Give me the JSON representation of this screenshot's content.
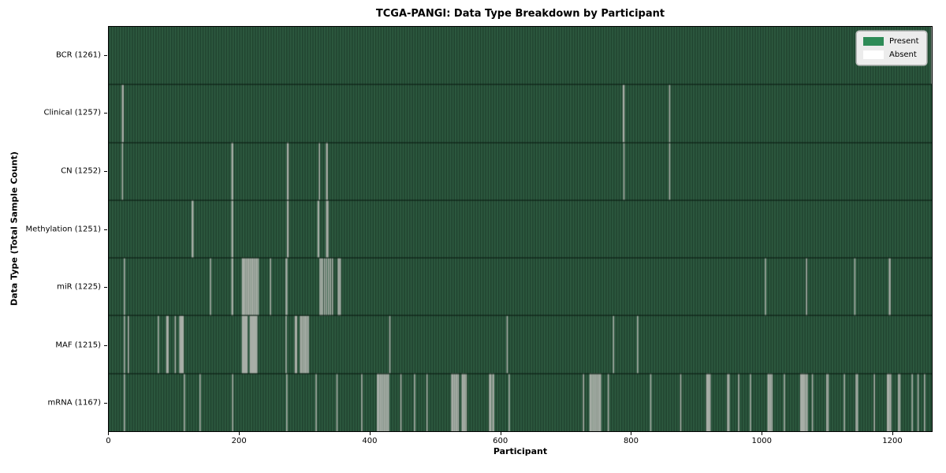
{
  "chart_data": {
    "type": "heatmap",
    "title": "TCGA-PANGI: Data Type Breakdown by Participant",
    "xlabel": "Participant",
    "ylabel": "Data Type (Total Sample Count)",
    "n_participants": 1262,
    "x_ticks": [
      0,
      200,
      400,
      600,
      800,
      1000,
      1200
    ],
    "legend_position": "upper right",
    "grid": false,
    "rows": [
      {
        "label": "BCR (1261)",
        "name": "BCR",
        "count": 1261,
        "absent": [
          1261
        ]
      },
      {
        "label": "Clinical (1257)",
        "name": "Clinical",
        "count": 1257,
        "absent": [
          20,
          21,
          788,
          789,
          859
        ]
      },
      {
        "label": "CN (1252)",
        "name": "CN",
        "count": 1252,
        "absent": [
          20,
          188,
          189,
          273,
          274,
          322,
          333,
          334,
          789,
          859
        ]
      },
      {
        "label": "Methylation (1251)",
        "name": "Methylation",
        "count": 1251,
        "absent": [
          127,
          128,
          188,
          189,
          273,
          274,
          320,
          321,
          333,
          334,
          335
        ]
      },
      {
        "label": "miR (1225)",
        "name": "miR",
        "count": 1225,
        "absent": [
          23,
          155,
          188,
          189,
          204,
          205,
          206,
          208,
          210,
          212,
          214,
          216,
          218,
          220,
          222,
          224,
          226,
          228,
          247,
          271,
          272,
          323,
          325,
          327,
          330,
          333,
          336,
          339,
          342,
          351,
          352,
          354,
          1006,
          1069,
          1143,
          1196,
          1197
        ]
      },
      {
        "label": "MAF (1215)",
        "name": "MAF",
        "count": 1215,
        "absent": [
          23,
          29,
          75,
          88,
          89,
          90,
          101,
          108,
          109,
          110,
          111,
          112,
          113,
          204,
          205,
          206,
          207,
          208,
          209,
          210,
          211,
          216,
          217,
          218,
          219,
          220,
          221,
          222,
          223,
          224,
          225,
          226,
          271,
          285,
          286,
          287,
          293,
          295,
          297,
          299,
          301,
          303,
          305,
          430,
          610,
          773,
          810
        ]
      },
      {
        "label": "mRNA (1167)",
        "name": "mRNA",
        "count": 1167,
        "absent": [
          23,
          115,
          139,
          189,
          272,
          317,
          349,
          387,
          411,
          412,
          413,
          415,
          417,
          419,
          421,
          423,
          425,
          427,
          428,
          447,
          468,
          487,
          525,
          526,
          527,
          529,
          531,
          533,
          535,
          541,
          542,
          543,
          545,
          547,
          583,
          584,
          585,
          588,
          589,
          613,
          727,
          737,
          738,
          740,
          742,
          744,
          746,
          748,
          750,
          752,
          753,
          765,
          830,
          876,
          916,
          917,
          918,
          920,
          921,
          948,
          950,
          965,
          983,
          1010,
          1011,
          1012,
          1014,
          1016,
          1035,
          1060,
          1061,
          1062,
          1063,
          1064,
          1065,
          1066,
          1068,
          1070,
          1078,
          1100,
          1102,
          1127,
          1145,
          1147,
          1173,
          1193,
          1194,
          1195,
          1197,
          1198,
          1210,
          1212,
          1231,
          1240,
          1250
        ]
      }
    ],
    "legend": [
      {
        "label": "Present",
        "color": "#2e8b57"
      },
      {
        "label": "Absent",
        "color": "#ffffff"
      }
    ],
    "colors": {
      "present": "#2e8b57",
      "absent": "#ffffff",
      "stripe_light": "#2e5c42",
      "stripe_dark": "#1e3e2b",
      "absent_line": "#a9afa8",
      "row_separator": "#0b1c12",
      "spine": "#000000",
      "legend_bg": "#ececec",
      "legend_border": "#b4b4b4"
    }
  }
}
